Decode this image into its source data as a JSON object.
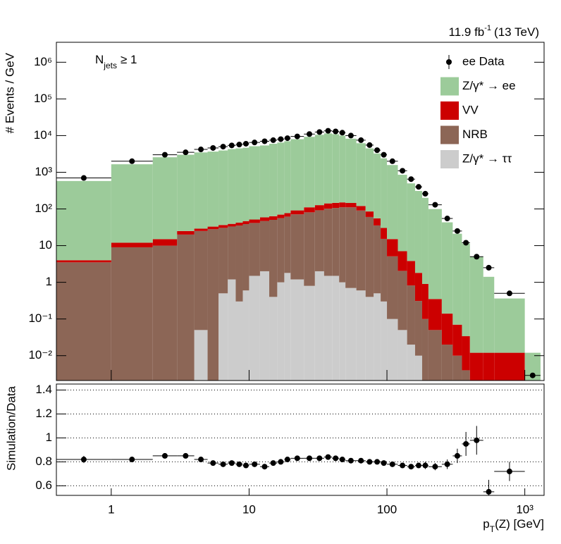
{
  "chart_data": [
    {
      "type": "histogram",
      "log_x": true,
      "log_y": true,
      "lumi": {
        "text": "11.9 fb",
        "sup": "-1",
        "rest": "(13 TeV)"
      },
      "njets": {
        "main": "N",
        "sub": "jets",
        "rest": "≥ 1"
      },
      "ylabel": "# Events / GeV",
      "bins": [
        0.4,
        1,
        2,
        3,
        4,
        5,
        6,
        7,
        8,
        9,
        10,
        12,
        14,
        16,
        18,
        20,
        25,
        30,
        35,
        40,
        45,
        50,
        60,
        70,
        80,
        90,
        100,
        120,
        140,
        160,
        180,
        200,
        250,
        300,
        350,
        400,
        500,
        600,
        1000,
        1300
      ],
      "xlim": [
        0.4,
        1380
      ],
      "ylim": [
        0.0021,
        3500000
      ],
      "yticks": [
        {
          "value": 0.01,
          "label": "10⁻²"
        },
        {
          "value": 0.1,
          "label": "10⁻¹"
        },
        1,
        10,
        {
          "value": 100,
          "label": "10²"
        },
        {
          "value": 1000,
          "label": "10³"
        },
        {
          "value": 10000,
          "label": "10⁴"
        },
        {
          "value": 100000,
          "label": "10⁵"
        },
        {
          "value": 1000000,
          "label": "10⁶"
        }
      ],
      "series": [
        {
          "name": "Z/γ* → ττ",
          "color": "#cccccc",
          "values": [
            0,
            0,
            0,
            0,
            0.05,
            0,
            0.5,
            1.2,
            0.3,
            0.6,
            1.5,
            2,
            0.4,
            1,
            1.8,
            1.2,
            0.8,
            2,
            1.5,
            1.5,
            1,
            0.7,
            0.6,
            0.4,
            0.5,
            0.3,
            0.1,
            0.05,
            0.02,
            0.01,
            0,
            0,
            0,
            0,
            0,
            0,
            0,
            0,
            0
          ]
        },
        {
          "name": "NRB",
          "color": "#8c6656",
          "values": [
            3.5,
            9,
            10,
            20,
            25,
            28,
            30,
            32,
            35,
            38,
            40,
            45,
            50,
            55,
            60,
            70,
            80,
            90,
            100,
            105,
            110,
            110,
            90,
            60,
            35,
            15,
            5,
            2,
            0.8,
            0.3,
            0.1,
            0.05,
            0.02,
            0.01,
            0.004,
            0,
            0,
            0,
            0
          ]
        },
        {
          "name": "VV",
          "color": "#cc0000",
          "values": [
            0.5,
            3,
            5,
            5,
            4,
            5,
            6,
            6,
            7,
            8,
            10,
            12,
            13,
            14,
            15,
            20,
            30,
            35,
            40,
            40,
            40,
            35,
            30,
            25,
            20,
            15,
            10,
            5,
            3,
            1.5,
            0.8,
            0.3,
            0.12,
            0.06,
            0.03,
            0.012,
            0.012,
            0.012,
            0
          ]
        },
        {
          "name": "Z/γ* → ee",
          "color": "#9ccb9a",
          "values": [
            574,
            1640,
            2550,
            2975,
            3444,
            3634,
            3900,
            4266,
            4446,
            4620,
            5070,
            5320,
            5925,
            6400,
            6970,
            7885,
            9130,
            10375,
            11340,
            10790,
            9840,
            8100,
            6075,
            4400,
            3200,
            2370,
            1560,
            847,
            494,
            308,
            200,
            99,
            43,
            21,
            11.4,
            4.9,
            1.4,
            0.35,
            0.012
          ]
        }
      ],
      "data": {
        "name": "ee Data",
        "color": "#000000",
        "values": [
          700,
          2000,
          3000,
          3500,
          4200,
          4600,
          5000,
          5400,
          5700,
          6000,
          6500,
          7000,
          7500,
          8000,
          8500,
          9500,
          11000,
          12500,
          13500,
          13000,
          12000,
          10000,
          7500,
          5500,
          4000,
          3000,
          2000,
          1100,
          650,
          400,
          260,
          130,
          55,
          25,
          12,
          5,
          2.5,
          0.5,
          0.0029
        ]
      }
    },
    {
      "type": "scatter",
      "log_x": true,
      "ylabel": "Simulation/Data",
      "xlabel": {
        "main": "p",
        "sub": "T",
        "rest": "(Z) [GeV]"
      },
      "xlim": [
        0.4,
        1380
      ],
      "xticks": [
        1,
        10,
        100,
        {
          "value": 1000,
          "label": "10³"
        }
      ],
      "ylim": [
        0.52,
        1.45
      ],
      "yticks": [
        0.6,
        0.8,
        1,
        1.2,
        1.4
      ],
      "grid": true,
      "color": "#000000",
      "values": [
        0.82,
        0.82,
        0.85,
        0.85,
        0.82,
        0.79,
        0.78,
        0.79,
        0.78,
        0.77,
        0.78,
        0.76,
        0.79,
        0.8,
        0.82,
        0.83,
        0.83,
        0.83,
        0.84,
        0.83,
        0.82,
        0.81,
        0.81,
        0.8,
        0.8,
        0.79,
        0.78,
        0.77,
        0.76,
        0.77,
        0.77,
        0.76,
        0.78,
        0.85,
        0.95,
        0.98,
        0.55,
        0.72,
        null
      ],
      "errors": [
        0.03,
        0.01,
        0.01,
        0.01,
        0.01,
        0.01,
        0.01,
        0.01,
        0.01,
        0.01,
        0.01,
        0.01,
        0.01,
        0.01,
        0.01,
        0.01,
        0.01,
        0.01,
        0.01,
        0.01,
        0.01,
        0.01,
        0.01,
        0.01,
        0.01,
        0.01,
        0.01,
        0.02,
        0.02,
        0.02,
        0.03,
        0.03,
        0.04,
        0.06,
        0.1,
        0.12,
        0.1,
        0.08,
        null
      ]
    }
  ]
}
